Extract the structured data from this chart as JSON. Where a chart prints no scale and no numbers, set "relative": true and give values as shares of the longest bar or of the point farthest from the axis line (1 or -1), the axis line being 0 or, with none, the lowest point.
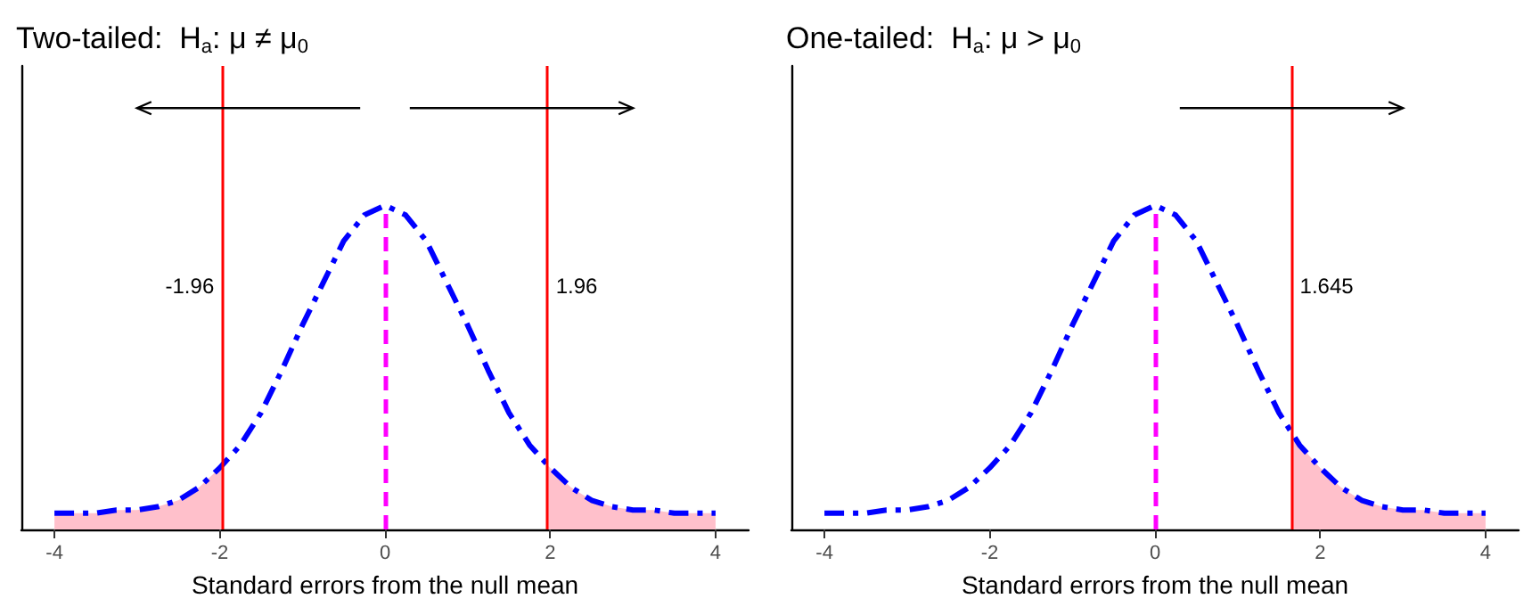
{
  "chart_data": [
    {
      "type": "line",
      "title": "Two-tailed:  H$_{a}$: μ ≠ μ$_{0}$",
      "xlabel": "Standard errors from the null mean",
      "relative": true,
      "xlim": [
        -4.4,
        4.4
      ],
      "xticks": [
        -4,
        -2,
        0,
        2,
        4
      ],
      "tick_labels": "x",
      "grid": false,
      "marker": "none",
      "series": [
        {
          "color": "#0000ff",
          "line_style": "dashed",
          "x": [
            -4,
            -3.75,
            -3.5,
            -3.25,
            -3,
            -2.75,
            -2.5,
            -2.25,
            -2,
            -1.75,
            -1.5,
            -1.25,
            -1,
            -0.75,
            -0.5,
            -0.25,
            0,
            0.25,
            0.5,
            0.75,
            1,
            1.25,
            1.5,
            1.75,
            2,
            2.25,
            2.5,
            2.75,
            3,
            3.25,
            3.5,
            3.75,
            4
          ],
          "values": [
            0.05,
            0.05,
            0.05,
            0.06,
            0.06,
            0.07,
            0.09,
            0.13,
            0.19,
            0.26,
            0.36,
            0.49,
            0.63,
            0.76,
            0.89,
            0.97,
            1,
            0.97,
            0.89,
            0.76,
            0.63,
            0.49,
            0.36,
            0.26,
            0.19,
            0.13,
            0.09,
            0.07,
            0.06,
            0.06,
            0.05,
            0.05,
            0.05
          ]
        },
        {
          "type": "area",
          "color": "#ffc0cb",
          "x": [
            -4,
            -3.75,
            -3.5,
            -3.25,
            -3,
            -2.75,
            -2.5,
            -2.25,
            -2,
            -1.96
          ],
          "values": [
            0.05,
            0.05,
            0.05,
            0.06,
            0.06,
            0.07,
            0.09,
            0.13,
            0.19,
            0.2
          ]
        },
        {
          "type": "area",
          "color": "#ffc0cb",
          "x": [
            1.96,
            2,
            2.25,
            2.5,
            2.75,
            3,
            3.25,
            3.5,
            3.75,
            4
          ],
          "values": [
            0.2,
            0.19,
            0.13,
            0.09,
            0.07,
            0.06,
            0.06,
            0.05,
            0.05,
            0.05
          ]
        }
      ],
      "ref_lines": [
        {
          "axis": "x",
          "value": 0,
          "color": "#ff00ff",
          "line_style": "dashed"
        },
        {
          "axis": "x",
          "value": -1.96,
          "label": "-1.96",
          "color": "#ff0000",
          "line_style": "solid"
        },
        {
          "axis": "x",
          "value": 1.96,
          "label": "1.96",
          "color": "#ff0000",
          "line_style": "solid"
        }
      ]
    },
    {
      "type": "line",
      "title": "One-tailed:  H$_{a}$: μ > μ$_{0}$",
      "xlabel": "Standard errors from the null mean",
      "relative": true,
      "xlim": [
        -4.4,
        4.4
      ],
      "xticks": [
        -4,
        -2,
        0,
        2,
        4
      ],
      "tick_labels": "x",
      "grid": false,
      "marker": "none",
      "series": [
        {
          "color": "#0000ff",
          "line_style": "dashed",
          "x": [
            -4,
            -3.75,
            -3.5,
            -3.25,
            -3,
            -2.75,
            -2.5,
            -2.25,
            -2,
            -1.75,
            -1.5,
            -1.25,
            -1,
            -0.75,
            -0.5,
            -0.25,
            0,
            0.25,
            0.5,
            0.75,
            1,
            1.25,
            1.5,
            1.75,
            2,
            2.25,
            2.5,
            2.75,
            3,
            3.25,
            3.5,
            3.75,
            4
          ],
          "values": [
            0.05,
            0.05,
            0.05,
            0.06,
            0.06,
            0.07,
            0.09,
            0.13,
            0.19,
            0.26,
            0.36,
            0.49,
            0.63,
            0.76,
            0.89,
            0.97,
            1,
            0.97,
            0.89,
            0.76,
            0.63,
            0.49,
            0.36,
            0.26,
            0.19,
            0.13,
            0.09,
            0.07,
            0.06,
            0.06,
            0.05,
            0.05,
            0.05
          ]
        },
        {
          "type": "area",
          "color": "#ffc0cb",
          "x": [
            1.645,
            1.75,
            2,
            2.25,
            2.5,
            2.75,
            3,
            3.25,
            3.5,
            3.75,
            4
          ],
          "values": [
            0.3,
            0.26,
            0.19,
            0.13,
            0.09,
            0.07,
            0.06,
            0.06,
            0.05,
            0.05,
            0.05
          ]
        }
      ],
      "ref_lines": [
        {
          "axis": "x",
          "value": 0,
          "color": "#ff00ff",
          "line_style": "dashed"
        },
        {
          "axis": "x",
          "value": 1.645,
          "label": "1.645",
          "color": "#ff0000",
          "line_style": "solid"
        }
      ]
    }
  ]
}
